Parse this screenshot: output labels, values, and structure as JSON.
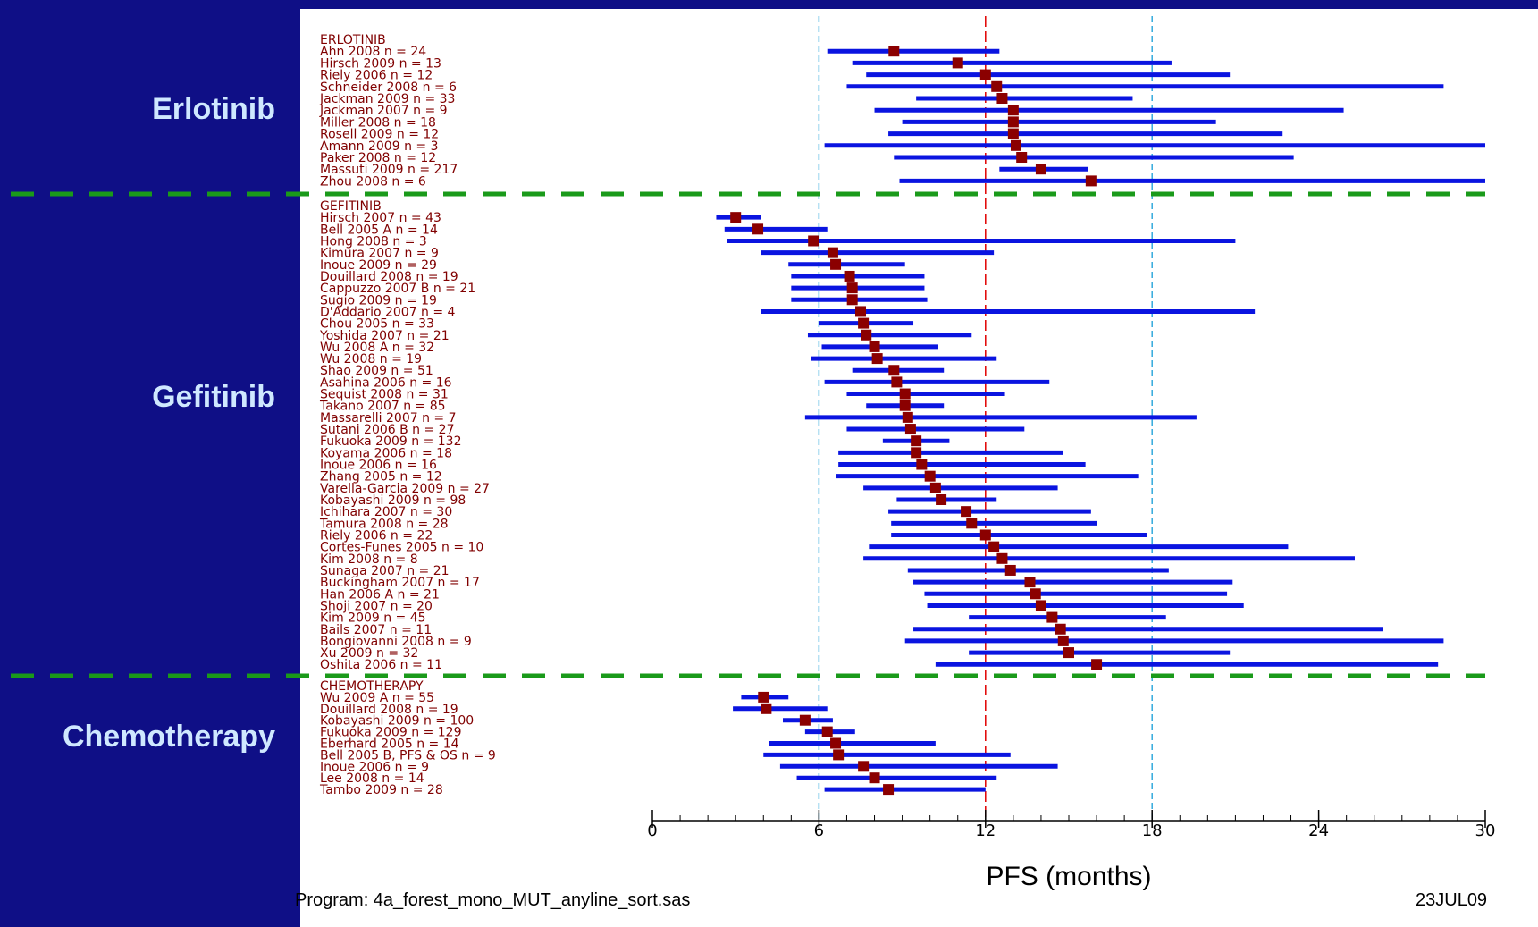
{
  "groups": [
    {
      "title": "Erlotinib",
      "header": "ERLOTINIB"
    },
    {
      "title": "Gefitinib",
      "header": "GEFITINIB"
    },
    {
      "title": "Chemotherapy",
      "header": "CHEMOTHERAPY"
    }
  ],
  "footer": {
    "program": "Program: 4a_forest_mono_MUT_anyline_sort.sas",
    "date": "23JUL09"
  },
  "colors": {
    "background": "#0f0f86",
    "group_title": "#cfe8ff",
    "study_label": "#800000",
    "ci_line": "#0a14e0",
    "point": "#8b0000",
    "reference_line": "#e00000",
    "guide_lines": "#33aadd",
    "separator": "#1a9a1a"
  },
  "chart_data": {
    "type": "forest",
    "xlabel": "PFS (months)",
    "xlim": [
      0,
      30
    ],
    "xticks": [
      0,
      6,
      12,
      18,
      24,
      30
    ],
    "reference_line": 12,
    "guide_lines": [
      6,
      18
    ],
    "groups": [
      {
        "name": "ERLOTINIB",
        "studies": [
          {
            "label": "Ahn 2008",
            "n": "n = 24",
            "pfs": 8.7,
            "lo": 6.3,
            "hi": 12.5
          },
          {
            "label": "Hirsch 2009",
            "n": "n = 13",
            "pfs": 11.0,
            "lo": 7.2,
            "hi": 18.7
          },
          {
            "label": "Riely 2006",
            "n": "n = 12",
            "pfs": 12.0,
            "lo": 7.7,
            "hi": 20.8
          },
          {
            "label": "Schneider 2008",
            "n": "n = 6",
            "pfs": 12.4,
            "lo": 7.0,
            "hi": 28.5
          },
          {
            "label": "Jackman 2009",
            "n": "n = 33",
            "pfs": 12.6,
            "lo": 9.5,
            "hi": 17.3
          },
          {
            "label": "Jackman 2007",
            "n": "n = 9",
            "pfs": 13.0,
            "lo": 8.0,
            "hi": 24.9
          },
          {
            "label": "Miller 2008",
            "n": "n = 18",
            "pfs": 13.0,
            "lo": 9.0,
            "hi": 20.3
          },
          {
            "label": "Rosell 2009",
            "n": "n = 12",
            "pfs": 13.0,
            "lo": 8.5,
            "hi": 22.7
          },
          {
            "label": "Amann 2009",
            "n": "n = 3",
            "pfs": 13.1,
            "lo": 6.2,
            "hi": 30.0
          },
          {
            "label": "Paker 2008",
            "n": "n = 12",
            "pfs": 13.3,
            "lo": 8.7,
            "hi": 23.1
          },
          {
            "label": "Massuti 2009",
            "n": "n = 217",
            "pfs": 14.0,
            "lo": 12.5,
            "hi": 15.7
          },
          {
            "label": "Zhou 2008",
            "n": "n = 6",
            "pfs": 15.8,
            "lo": 8.9,
            "hi": 30.0
          }
        ]
      },
      {
        "name": "GEFITINIB",
        "studies": [
          {
            "label": "Hirsch 2007",
            "n": "n = 43",
            "pfs": 3.0,
            "lo": 2.3,
            "hi": 3.9
          },
          {
            "label": "Bell 2005 A",
            "n": "n = 14",
            "pfs": 3.8,
            "lo": 2.6,
            "hi": 6.3
          },
          {
            "label": "Hong 2008",
            "n": "n = 3",
            "pfs": 5.8,
            "lo": 2.7,
            "hi": 21.0
          },
          {
            "label": "Kimura 2007",
            "n": "n = 9",
            "pfs": 6.5,
            "lo": 3.9,
            "hi": 12.3
          },
          {
            "label": "Inoue 2009",
            "n": "n = 29",
            "pfs": 6.6,
            "lo": 4.9,
            "hi": 9.1
          },
          {
            "label": "Douillard 2008",
            "n": "n = 19",
            "pfs": 7.1,
            "lo": 5.0,
            "hi": 9.8
          },
          {
            "label": "Cappuzzo 2007 B",
            "n": "n = 21",
            "pfs": 7.2,
            "lo": 5.0,
            "hi": 9.8
          },
          {
            "label": "Sugio 2009",
            "n": "n = 19",
            "pfs": 7.2,
            "lo": 5.0,
            "hi": 9.9
          },
          {
            "label": "D'Addario 2007",
            "n": "n = 4",
            "pfs": 7.5,
            "lo": 3.9,
            "hi": 21.7
          },
          {
            "label": "Chou 2005",
            "n": "n = 33",
            "pfs": 7.6,
            "lo": 6.0,
            "hi": 9.4
          },
          {
            "label": "Yoshida 2007",
            "n": "n = 21",
            "pfs": 7.7,
            "lo": 5.6,
            "hi": 11.5
          },
          {
            "label": "Wu 2008 A",
            "n": "n = 32",
            "pfs": 8.0,
            "lo": 6.1,
            "hi": 10.3
          },
          {
            "label": "Wu 2008",
            "n": "n = 19",
            "pfs": 8.1,
            "lo": 5.7,
            "hi": 12.4
          },
          {
            "label": "Shao 2009",
            "n": "n = 51",
            "pfs": 8.7,
            "lo": 7.2,
            "hi": 10.5
          },
          {
            "label": "Asahina 2006",
            "n": "n = 16",
            "pfs": 8.8,
            "lo": 6.2,
            "hi": 14.3
          },
          {
            "label": "Sequist 2008",
            "n": "n = 31",
            "pfs": 9.1,
            "lo": 7.0,
            "hi": 12.7
          },
          {
            "label": "Takano 2007",
            "n": "n = 85",
            "pfs": 9.1,
            "lo": 7.7,
            "hi": 10.5
          },
          {
            "label": "Massarelli 2007",
            "n": "n = 7",
            "pfs": 9.2,
            "lo": 5.5,
            "hi": 19.6
          },
          {
            "label": "Sutani 2006 B",
            "n": "n = 27",
            "pfs": 9.3,
            "lo": 7.0,
            "hi": 13.4
          },
          {
            "label": "Fukuoka 2009",
            "n": "n = 132",
            "pfs": 9.5,
            "lo": 8.3,
            "hi": 10.7
          },
          {
            "label": "Koyama 2006",
            "n": "n = 18",
            "pfs": 9.5,
            "lo": 6.7,
            "hi": 14.8
          },
          {
            "label": "Inoue 2006",
            "n": "n = 16",
            "pfs": 9.7,
            "lo": 6.7,
            "hi": 15.6
          },
          {
            "label": "Zhang 2005",
            "n": "n = 12",
            "pfs": 10.0,
            "lo": 6.6,
            "hi": 17.5
          },
          {
            "label": "Varella-Garcia 2009",
            "n": "n = 27",
            "pfs": 10.2,
            "lo": 7.6,
            "hi": 14.6
          },
          {
            "label": "Kobayashi 2009",
            "n": "n = 98",
            "pfs": 10.4,
            "lo": 8.8,
            "hi": 12.4
          },
          {
            "label": "Ichihara 2007",
            "n": "n = 30",
            "pfs": 11.3,
            "lo": 8.5,
            "hi": 15.8
          },
          {
            "label": "Tamura 2008",
            "n": "n = 28",
            "pfs": 11.5,
            "lo": 8.6,
            "hi": 16.0
          },
          {
            "label": "Riely 2006",
            "n": "n = 22",
            "pfs": 12.0,
            "lo": 8.6,
            "hi": 17.8
          },
          {
            "label": "Cortes-Funes 2005",
            "n": "n = 10",
            "pfs": 12.3,
            "lo": 7.8,
            "hi": 22.9
          },
          {
            "label": "Kim 2008",
            "n": "n = 8",
            "pfs": 12.6,
            "lo": 7.6,
            "hi": 25.3
          },
          {
            "label": "Sunaga 2007",
            "n": "n = 21",
            "pfs": 12.9,
            "lo": 9.2,
            "hi": 18.6
          },
          {
            "label": "Buckingham 2007",
            "n": "n = 17",
            "pfs": 13.6,
            "lo": 9.4,
            "hi": 20.9
          },
          {
            "label": "Han 2006 A",
            "n": "n = 21",
            "pfs": 13.8,
            "lo": 9.8,
            "hi": 20.7
          },
          {
            "label": "Shoji 2007",
            "n": "n = 20",
            "pfs": 14.0,
            "lo": 9.9,
            "hi": 21.3
          },
          {
            "label": "Kim 2009",
            "n": "n = 45",
            "pfs": 14.4,
            "lo": 11.4,
            "hi": 18.5
          },
          {
            "label": "Bails 2007",
            "n": "n = 11",
            "pfs": 14.7,
            "lo": 9.4,
            "hi": 26.3
          },
          {
            "label": "Bongiovanni 2008",
            "n": "n = 9",
            "pfs": 14.8,
            "lo": 9.1,
            "hi": 28.5
          },
          {
            "label": "Xu 2009",
            "n": "n = 32",
            "pfs": 15.0,
            "lo": 11.4,
            "hi": 20.8
          },
          {
            "label": "Oshita 2006",
            "n": "n = 11",
            "pfs": 16.0,
            "lo": 10.2,
            "hi": 28.3
          }
        ]
      },
      {
        "name": "CHEMOTHERAPY",
        "studies": [
          {
            "label": "Wu 2009 A",
            "n": "n = 55",
            "pfs": 4.0,
            "lo": 3.2,
            "hi": 4.9
          },
          {
            "label": "Douillard 2008",
            "n": "n = 19",
            "pfs": 4.1,
            "lo": 2.9,
            "hi": 6.3
          },
          {
            "label": "Kobayashi 2009",
            "n": "n = 100",
            "pfs": 5.5,
            "lo": 4.7,
            "hi": 6.5
          },
          {
            "label": "Fukuoka 2009",
            "n": "n = 129",
            "pfs": 6.3,
            "lo": 5.5,
            "hi": 7.3
          },
          {
            "label": "Eberhard 2005",
            "n": "n = 14",
            "pfs": 6.6,
            "lo": 4.2,
            "hi": 10.2
          },
          {
            "label": "Bell 2005 B, PFS & OS",
            "n": "n = 9",
            "pfs": 6.7,
            "lo": 4.0,
            "hi": 12.9
          },
          {
            "label": "Inoue 2006",
            "n": "n = 9",
            "pfs": 7.6,
            "lo": 4.6,
            "hi": 14.6
          },
          {
            "label": "Lee 2008",
            "n": "n = 14",
            "pfs": 8.0,
            "lo": 5.2,
            "hi": 12.4
          },
          {
            "label": "Tambo 2009",
            "n": "n = 28",
            "pfs": 8.5,
            "lo": 6.2,
            "hi": 12.0
          }
        ]
      }
    ]
  }
}
